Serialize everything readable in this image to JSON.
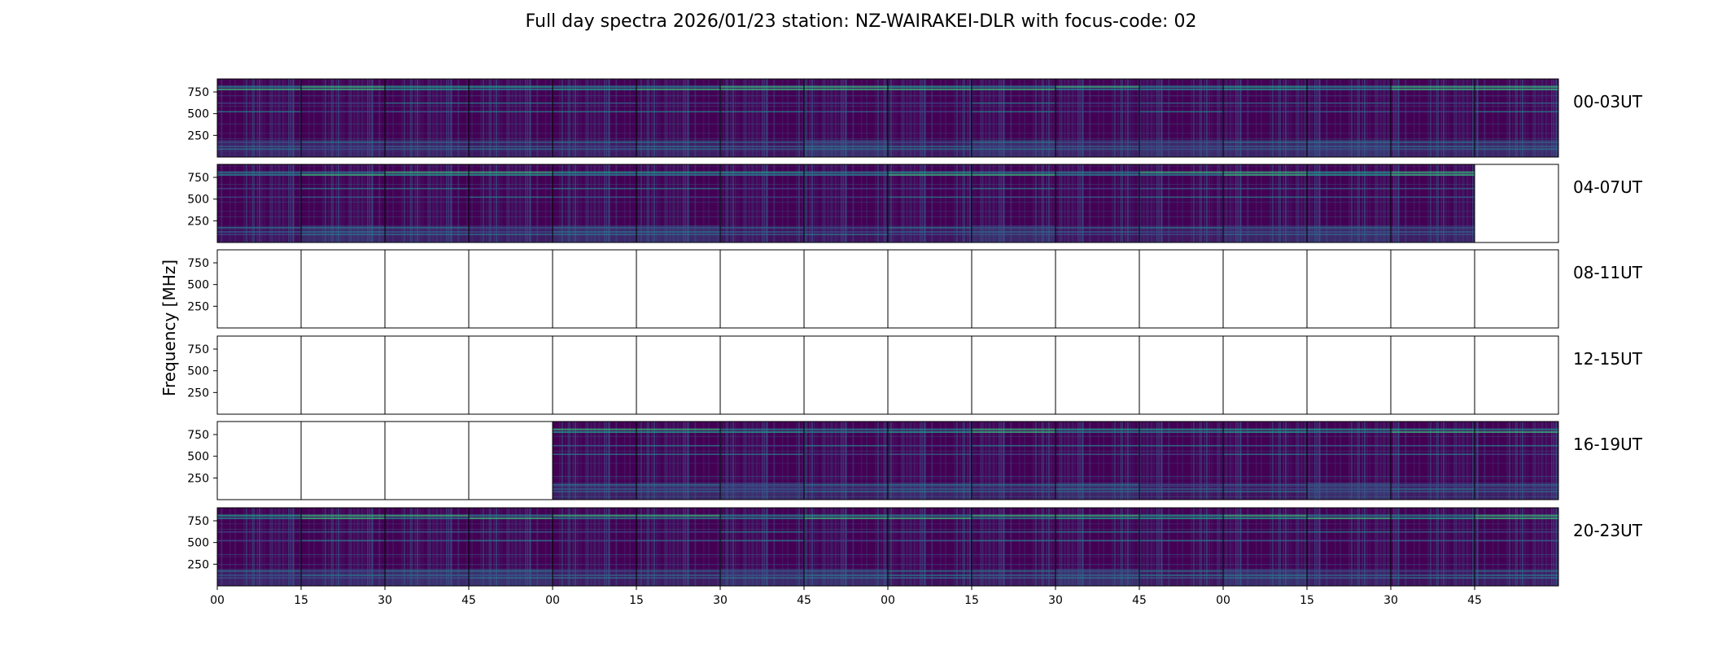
{
  "chart_data": {
    "type": "heatmap",
    "title": "Full day spectra 2026/01/23 station: NZ-WAIRAKEI-DLR with focus-code: 02",
    "ylabel": "Frequency [MHz]",
    "xlabel": "",
    "ylim": [
      0,
      900
    ],
    "y_ticks": [
      "250",
      "500",
      "750"
    ],
    "y_tick_values": [
      250,
      500,
      750
    ],
    "x_tick_labels": [
      "00",
      "15",
      "30",
      "45",
      "00",
      "15",
      "30",
      "45",
      "00",
      "15",
      "30",
      "45",
      "00",
      "15",
      "30",
      "45"
    ],
    "panels_per_row": 16,
    "colormap": [
      "#440154",
      "#482878",
      "#3e4989",
      "#31688e",
      "#26828e",
      "#1f9e89",
      "#35b779",
      "#6ece58",
      "#b5de2b",
      "#fde725"
    ],
    "rows": [
      {
        "label": "00-03UT",
        "data_panels": [
          1,
          1,
          1,
          1,
          1,
          1,
          1,
          1,
          1,
          1,
          1,
          1,
          1,
          1,
          1,
          1
        ]
      },
      {
        "label": "04-07UT",
        "data_panels": [
          1,
          1,
          1,
          1,
          1,
          1,
          1,
          1,
          1,
          1,
          1,
          1,
          1,
          1,
          1,
          0
        ]
      },
      {
        "label": "08-11UT",
        "data_panels": [
          0,
          0,
          0,
          0,
          0,
          0,
          0,
          0,
          0,
          0,
          0,
          0,
          0,
          0,
          0,
          0
        ]
      },
      {
        "label": "12-15UT",
        "data_panels": [
          0,
          0,
          0,
          0,
          0,
          0,
          0,
          0,
          0,
          0,
          0,
          0,
          0,
          0,
          0,
          0
        ]
      },
      {
        "label": "16-19UT",
        "data_panels": [
          0,
          0,
          0,
          0,
          1,
          1,
          1,
          1,
          1,
          1,
          1,
          1,
          1,
          1,
          1,
          1
        ]
      },
      {
        "label": "20-23UT",
        "data_panels": [
          1,
          1,
          1,
          1,
          1,
          1,
          1,
          1,
          1,
          1,
          1,
          1,
          1,
          1,
          1,
          1
        ]
      }
    ],
    "persistent_bands_mhz": [
      810,
      780,
      620,
      520,
      170,
      120,
      90
    ]
  }
}
